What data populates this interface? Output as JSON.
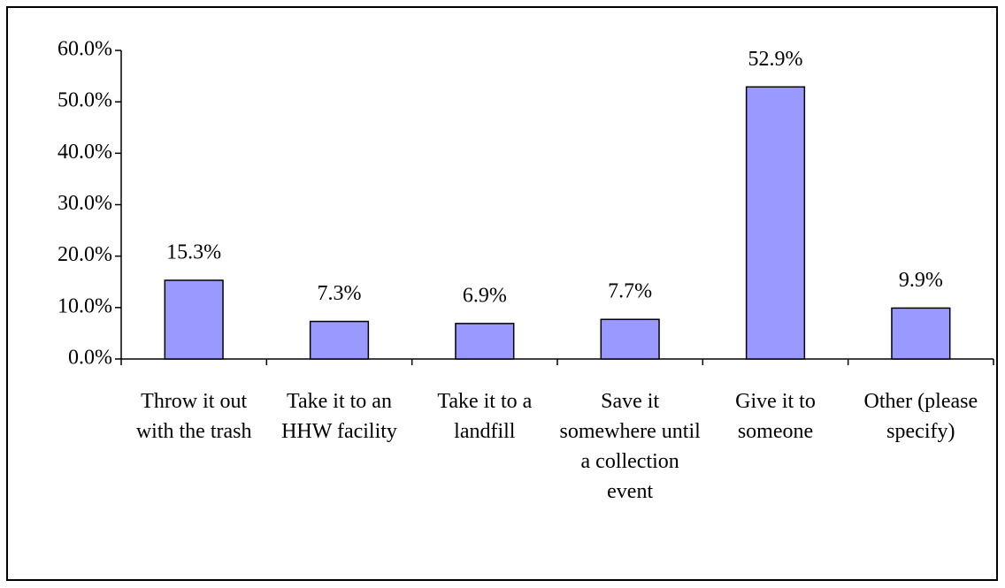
{
  "chart_data": {
    "type": "bar",
    "categories": [
      "Throw it out with the trash",
      "Take it to an HHW facility",
      "Take it to a landfill",
      "Save it somewhere until a collection event",
      "Give it to someone",
      "Other (please specify)"
    ],
    "values": [
      15.3,
      7.3,
      6.9,
      7.7,
      52.9,
      9.9
    ],
    "value_labels": [
      "15.3%",
      "7.3%",
      "6.9%",
      "7.7%",
      "52.9%",
      "9.9%"
    ],
    "color": "#9999ff",
    "ylim": [
      0,
      60
    ],
    "yticks": [
      {
        "value": 0,
        "label": "0.0%"
      },
      {
        "value": 10,
        "label": "10.0%"
      },
      {
        "value": 20,
        "label": "20.0%"
      },
      {
        "value": 30,
        "label": "30.0%"
      },
      {
        "value": 40,
        "label": "40.0%"
      },
      {
        "value": 50,
        "label": "50.0%"
      },
      {
        "value": 60,
        "label": "60.0%"
      }
    ],
    "grid": false
  }
}
